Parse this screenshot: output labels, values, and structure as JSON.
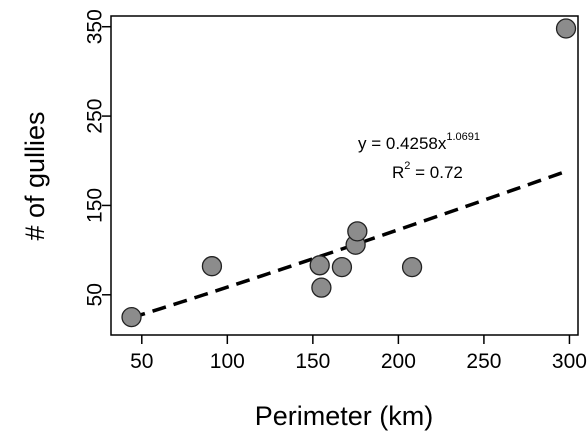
{
  "chart_data": {
    "type": "scatter",
    "title": "",
    "xlabel": "Perimeter (km)",
    "ylabel": "# of gullies",
    "xlim": [
      32,
      305
    ],
    "ylim": [
      5,
      362
    ],
    "xticks": [
      50,
      100,
      150,
      200,
      250,
      300
    ],
    "yticks": [
      50,
      150,
      250,
      350
    ],
    "grid": false,
    "legend": "none",
    "points": {
      "x": [
        44,
        91,
        154,
        155,
        167,
        175,
        176,
        208,
        298
      ],
      "y": [
        25,
        82,
        83,
        58,
        81,
        106,
        121,
        81,
        348
      ]
    },
    "trendline": {
      "type": "power",
      "a": 0.4258,
      "b": 1.0691,
      "x_range": [
        44,
        298
      ],
      "style": "dashed"
    },
    "annotations": {
      "equation_prefix": "y =  0.4258x",
      "equation_exponent": "1.0691",
      "r2_base": "R",
      "r2_exponent": "2",
      "r2_suffix": " = 0.72"
    },
    "colors": {
      "point_fill": "#8c8c8c",
      "point_stroke": "#222222",
      "line": "#000000"
    }
  }
}
